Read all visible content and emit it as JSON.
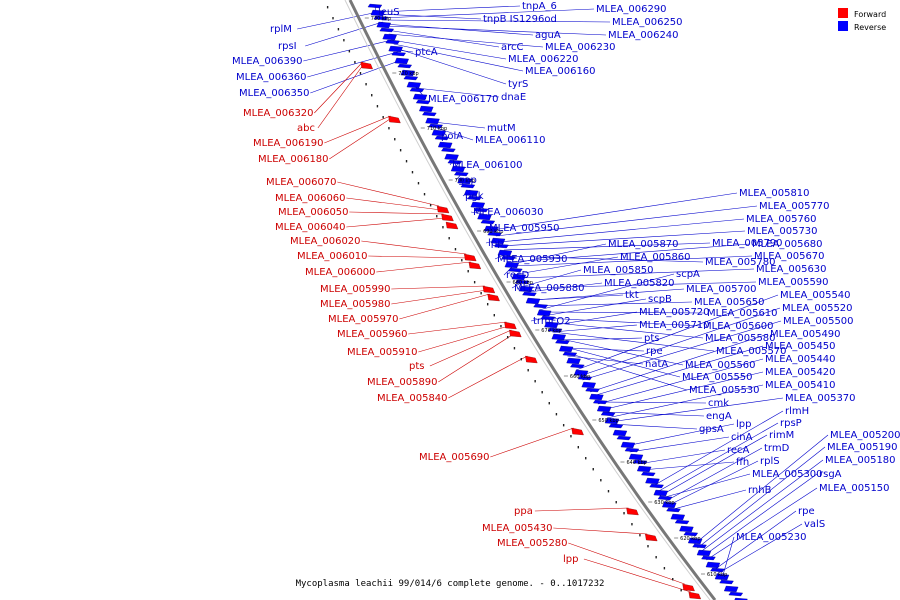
{
  "caption": "Mycoplasma leachii 99/014/6 complete genome. - 0..1017232",
  "legend": [
    {
      "label": "Forward",
      "color": "#ff0000"
    },
    {
      "label": "Reverse",
      "color": "#0000ff"
    }
  ],
  "colors": {
    "forward": "#cc0000",
    "reverse": "#0000cc",
    "forward_fill": "#ff0000",
    "reverse_fill": "#0000ff"
  },
  "ticks": [
    "730 kbp",
    "720 kbp",
    "710 kbp",
    "700 kbp",
    "690 kbp",
    "680 kbp",
    "670 kbp",
    "660 kbp",
    "650 kbp",
    "640 kbp",
    "630 kbp",
    "620 kbp",
    "610 kbp"
  ],
  "reverse_labels": [
    "leuS",
    "tnpA_6",
    "tnpB IS1296od",
    "MLEA_006290",
    "MLEA_006250",
    "aguA",
    "MLEA_006240",
    "ptcA",
    "arcC",
    "MLEA_006230",
    "MLEA_006220",
    "MLEA_006160",
    "tyrS",
    "MLEA_006170",
    "dnaE",
    "mutM",
    "polA",
    "MLEA_006110",
    "MLEA_006100",
    "gap",
    "pgk",
    "MLEA_006030",
    "MLEA_005950",
    "lpp",
    "MLEA_005930",
    "recD",
    "MLEA_005880",
    "trmFO2",
    "MLEA_005870",
    "MLEA_005860",
    "MLEA_005850",
    "MLEA_005820",
    "tkt",
    "scpA",
    "scpB",
    "MLEA_005720",
    "MLEA_005710",
    "pts",
    "rpe",
    "natA",
    "MLEA_005810",
    "MLEA_005790",
    "MLEA_005780",
    "MLEA_005770",
    "MLEA_005760",
    "MLEA_005730",
    "MLEA_005680",
    "MLEA_005670",
    "MLEA_005630",
    "MLEA_005590",
    "MLEA_005700",
    "MLEA_005650",
    "MLEA_005610",
    "MLEA_005600",
    "MLEA_005580",
    "MLEA_005570",
    "MLEA_005560",
    "MLEA_005550",
    "MLEA_005530",
    "MLEA_005540",
    "MLEA_005520",
    "MLEA_005500",
    "MLEA_005490",
    "MLEA_005450",
    "MLEA_005440",
    "MLEA_005420",
    "MLEA_005410",
    "MLEA_005370",
    "cmk",
    "engA",
    "gpsA",
    "lpp",
    "cinA",
    "recA",
    "ffh",
    "rlmH",
    "rpsP",
    "rimM",
    "trmD",
    "rplS",
    "MLEA_005300",
    "rnhB",
    "MLEA_005200",
    "MLEA_005190",
    "MLEA_005180",
    "rsgA",
    "MLEA_005150",
    "rpe",
    "valS",
    "MLEA_005230",
    "rplM",
    "rpsI",
    "MLEA_006390",
    "MLEA_006360",
    "MLEA_006350"
  ],
  "forward_labels": [
    "MLEA_006320",
    "abc",
    "MLEA_006190",
    "MLEA_006180",
    "MLEA_006070",
    "MLEA_006060",
    "MLEA_006050",
    "MLEA_006040",
    "MLEA_006020",
    "MLEA_006010",
    "MLEA_006000",
    "MLEA_005990",
    "MLEA_005980",
    "MLEA_005970",
    "MLEA_005960",
    "MLEA_005910",
    "pts",
    "MLEA_005890",
    "MLEA_005840",
    "MLEA_005690",
    "ppa",
    "MLEA_005430",
    "MLEA_005280",
    "lpp"
  ]
}
